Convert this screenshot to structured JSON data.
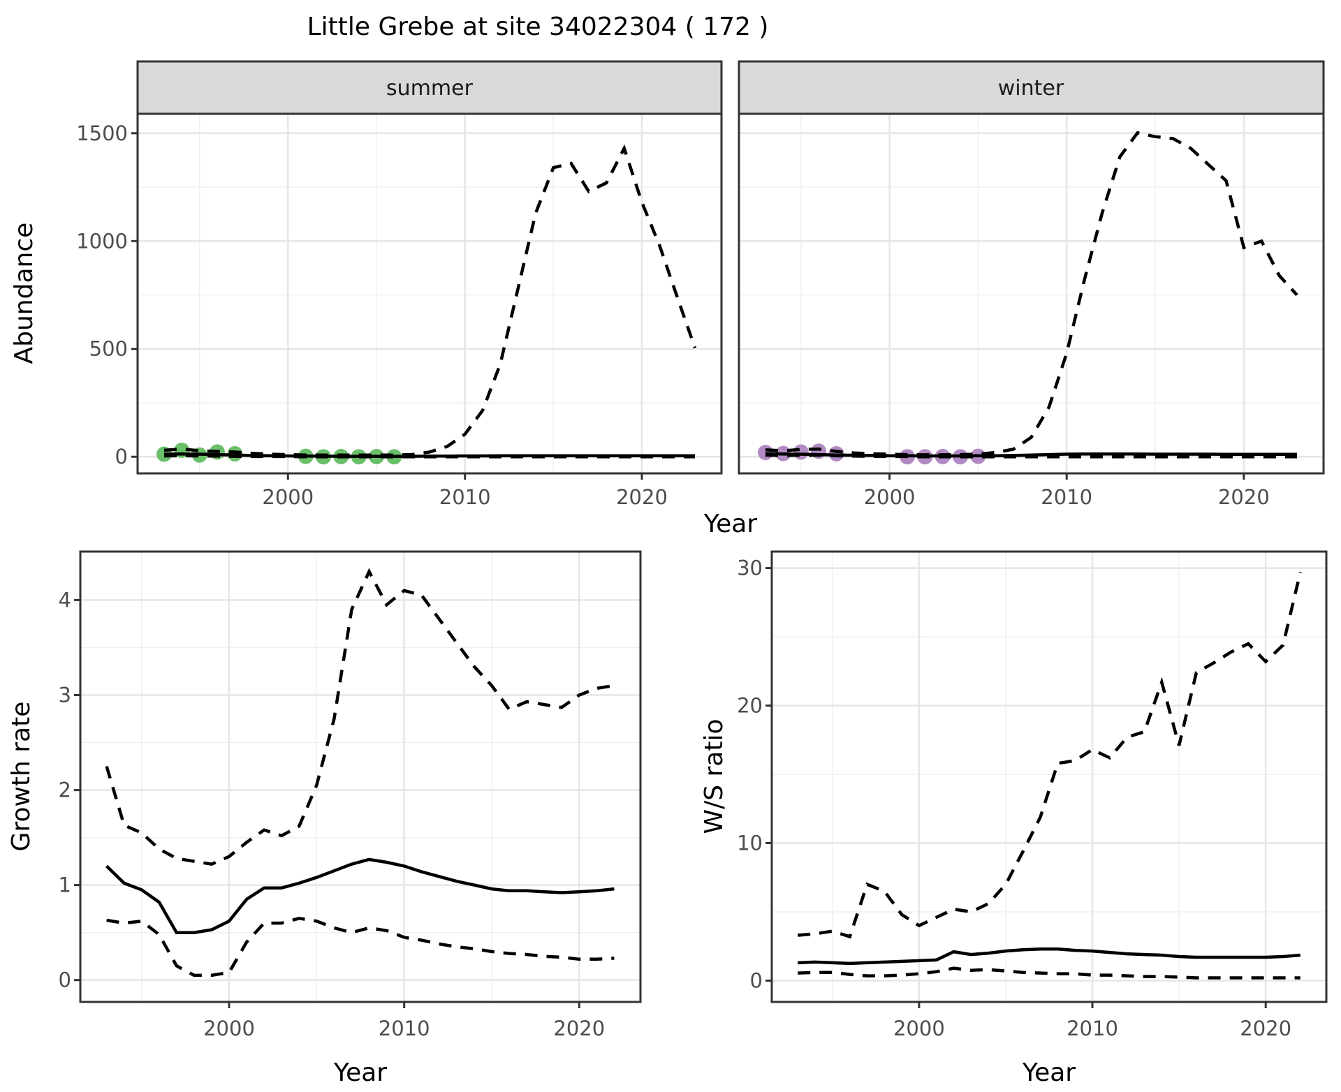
{
  "title": "Little Grebe at site 34022304 ( 172 )",
  "facets": [
    {
      "label": "summer"
    },
    {
      "label": "winter"
    }
  ],
  "axes": {
    "shared_x_label": "Year",
    "abundance_label": "Abundance",
    "growth_label": "Growth rate",
    "ws_label": "W/S ratio",
    "bottom_left_x_label": "Year",
    "bottom_right_x_label": "Year"
  },
  "colors": {
    "summer_points": "#6ABF69",
    "winter_points": "#B28BC4",
    "line": "#000000",
    "strip_fill": "#D9D9D9",
    "panel_border": "#333333",
    "grid_major": "#E6E6E6",
    "grid_minor": "#F0F0F0",
    "tick_label": "#4D4D4D",
    "background": "#FFFFFF"
  },
  "chart_data": [
    {
      "id": "abundance_summer",
      "type": "line",
      "facet": "summer",
      "xlabel": "Year",
      "ylabel": "Abundance",
      "xlim": [
        1991.5,
        2024.5
      ],
      "ylim": [
        -77,
        1590
      ],
      "xticks": [
        2000,
        2010,
        2020
      ],
      "yticks": [
        0,
        500,
        1000,
        1500
      ],
      "xminor": [
        1995,
        2005,
        2015
      ],
      "yminor": [
        250,
        750,
        1250
      ],
      "grid": true,
      "legend": "none",
      "x": [
        1993,
        1994,
        1995,
        1996,
        1997,
        1998,
        1999,
        2000,
        2001,
        2002,
        2003,
        2004,
        2005,
        2006,
        2007,
        2008,
        2009,
        2010,
        2011,
        2012,
        2013,
        2014,
        2015,
        2016,
        2017,
        2018,
        2019,
        2020,
        2021,
        2022,
        2023
      ],
      "series": [
        {
          "name": "median_fit",
          "style": "solid",
          "values": [
            12,
            13,
            12,
            10,
            8,
            6,
            5,
            4,
            3,
            3,
            2,
            2,
            2,
            2,
            2,
            3,
            3,
            4,
            4,
            5,
            5,
            5,
            5,
            5,
            5,
            5,
            5,
            5,
            5,
            5,
            5
          ]
        },
        {
          "name": "upper_ci",
          "style": "dashed",
          "values": [
            30,
            36,
            28,
            25,
            22,
            16,
            12,
            10,
            8,
            8,
            8,
            8,
            8,
            8,
            10,
            22,
            48,
            105,
            215,
            430,
            780,
            1130,
            1340,
            1360,
            1230,
            1270,
            1430,
            1180,
            980,
            740,
            505
          ]
        },
        {
          "name": "lower_ci",
          "style": "dashed",
          "values": [
            4,
            5,
            4,
            3,
            2,
            1,
            1,
            1,
            0,
            0,
            0,
            0,
            0,
            0,
            0,
            0,
            0,
            0,
            0,
            0,
            0,
            0,
            0,
            0,
            0,
            0,
            0,
            0,
            0,
            0,
            0
          ]
        },
        {
          "name": "observed_counts",
          "style": "points",
          "color": "#6ABF69",
          "x": [
            1993,
            1994,
            1995,
            1996,
            1997,
            2001,
            2002,
            2003,
            2004,
            2005,
            2006
          ],
          "values": [
            12,
            30,
            8,
            22,
            14,
            2,
            0,
            1,
            0,
            1,
            0
          ]
        }
      ]
    },
    {
      "id": "abundance_winter",
      "type": "line",
      "facet": "winter",
      "xlabel": "Year",
      "ylabel": "Abundance",
      "xlim": [
        1991.5,
        2024.5
      ],
      "ylim": [
        -77,
        1590
      ],
      "xticks": [
        2000,
        2010,
        2020
      ],
      "yticks": [
        0,
        500,
        1000,
        1500
      ],
      "xminor": [
        1995,
        2005,
        2015
      ],
      "yminor": [
        250,
        750,
        1250
      ],
      "grid": true,
      "legend": "none",
      "x": [
        1993,
        1994,
        1995,
        1996,
        1997,
        1998,
        1999,
        2000,
        2001,
        2002,
        2003,
        2004,
        2005,
        2006,
        2007,
        2008,
        2009,
        2010,
        2011,
        2012,
        2013,
        2014,
        2015,
        2016,
        2017,
        2018,
        2019,
        2020,
        2021,
        2022,
        2023
      ],
      "series": [
        {
          "name": "median_fit",
          "style": "solid",
          "values": [
            15,
            13,
            12,
            10,
            8,
            7,
            6,
            5,
            5,
            4,
            4,
            4,
            5,
            5,
            6,
            8,
            10,
            12,
            13,
            13,
            13,
            13,
            12,
            12,
            12,
            12,
            11,
            11,
            11,
            11,
            11
          ]
        },
        {
          "name": "upper_ci",
          "style": "dashed",
          "values": [
            32,
            28,
            34,
            36,
            25,
            18,
            14,
            12,
            10,
            9,
            9,
            10,
            12,
            20,
            35,
            90,
            230,
            480,
            820,
            1130,
            1390,
            1502,
            1484,
            1475,
            1430,
            1355,
            1280,
            970,
            1000,
            840,
            750
          ]
        },
        {
          "name": "lower_ci",
          "style": "dashed",
          "values": [
            8,
            6,
            7,
            8,
            5,
            3,
            2,
            1,
            1,
            0,
            0,
            0,
            0,
            0,
            0,
            0,
            0,
            0,
            0,
            0,
            0,
            0,
            0,
            0,
            0,
            0,
            0,
            0,
            0,
            0,
            0
          ]
        },
        {
          "name": "observed_counts",
          "style": "points",
          "color": "#B28BC4",
          "x": [
            1993,
            1994,
            1995,
            1996,
            1997,
            2001,
            2002,
            2003,
            2004,
            2005
          ],
          "values": [
            20,
            15,
            22,
            26,
            14,
            0,
            0,
            1,
            0,
            2
          ]
        }
      ]
    },
    {
      "id": "growth_rate",
      "type": "line",
      "xlabel": "Year",
      "ylabel": "Growth rate",
      "xlim": [
        1991.5,
        2023.5
      ],
      "ylim": [
        -0.23,
        4.51
      ],
      "xticks": [
        2000,
        2010,
        2020
      ],
      "yticks": [
        0,
        1,
        2,
        3,
        4
      ],
      "xminor": [
        1995,
        2005,
        2015
      ],
      "yminor": [
        0.5,
        1.5,
        2.5,
        3.5
      ],
      "grid": true,
      "legend": "none",
      "x": [
        1993,
        1994,
        1995,
        1996,
        1997,
        1998,
        1999,
        2000,
        2001,
        2002,
        2003,
        2004,
        2005,
        2006,
        2007,
        2008,
        2009,
        2010,
        2011,
        2012,
        2013,
        2014,
        2015,
        2016,
        2017,
        2018,
        2019,
        2020,
        2021,
        2022
      ],
      "series": [
        {
          "name": "median_fit",
          "style": "solid",
          "values": [
            1.2,
            1.02,
            0.95,
            0.82,
            0.5,
            0.5,
            0.53,
            0.62,
            0.85,
            0.97,
            0.97,
            1.02,
            1.08,
            1.15,
            1.22,
            1.27,
            1.24,
            1.2,
            1.14,
            1.09,
            1.04,
            1.0,
            0.96,
            0.94,
            0.94,
            0.93,
            0.92,
            0.93,
            0.94,
            0.96
          ]
        },
        {
          "name": "upper_ci",
          "style": "dashed",
          "values": [
            2.25,
            1.63,
            1.55,
            1.38,
            1.28,
            1.25,
            1.22,
            1.3,
            1.45,
            1.58,
            1.52,
            1.62,
            2.05,
            2.75,
            3.9,
            4.3,
            3.95,
            4.1,
            4.05,
            3.8,
            3.55,
            3.3,
            3.1,
            2.85,
            2.93,
            2.9,
            2.87,
            3.0,
            3.07,
            3.1
          ]
        },
        {
          "name": "lower_ci",
          "style": "dashed",
          "values": [
            0.63,
            0.6,
            0.62,
            0.48,
            0.15,
            0.05,
            0.05,
            0.08,
            0.4,
            0.6,
            0.6,
            0.65,
            0.62,
            0.55,
            0.5,
            0.55,
            0.52,
            0.45,
            0.42,
            0.38,
            0.35,
            0.33,
            0.3,
            0.28,
            0.27,
            0.25,
            0.24,
            0.22,
            0.22,
            0.23
          ]
        }
      ]
    },
    {
      "id": "ws_ratio",
      "type": "line",
      "xlabel": "Year",
      "ylabel": "W/S ratio",
      "xlim": [
        1991.5,
        2023.5
      ],
      "ylim": [
        -1.55,
        31.2
      ],
      "xticks": [
        2000,
        2010,
        2020
      ],
      "yticks": [
        0,
        10,
        20,
        30
      ],
      "xminor": [
        1995,
        2005,
        2015
      ],
      "yminor": [
        5,
        15,
        25
      ],
      "grid": true,
      "legend": "none",
      "x": [
        1993,
        1994,
        1995,
        1996,
        1997,
        1998,
        1999,
        2000,
        2001,
        2002,
        2003,
        2004,
        2005,
        2006,
        2007,
        2008,
        2009,
        2010,
        2011,
        2012,
        2013,
        2014,
        2015,
        2016,
        2017,
        2018,
        2019,
        2020,
        2021,
        2022
      ],
      "series": [
        {
          "name": "median_fit",
          "style": "solid",
          "values": [
            1.3,
            1.35,
            1.3,
            1.25,
            1.3,
            1.35,
            1.4,
            1.45,
            1.5,
            2.1,
            1.9,
            2.0,
            2.15,
            2.25,
            2.3,
            2.3,
            2.2,
            2.15,
            2.05,
            1.95,
            1.9,
            1.85,
            1.75,
            1.7,
            1.7,
            1.7,
            1.7,
            1.7,
            1.75,
            1.85
          ]
        },
        {
          "name": "upper_ci",
          "style": "dashed",
          "values": [
            3.3,
            3.4,
            3.6,
            3.2,
            7.0,
            6.5,
            4.8,
            4.0,
            4.6,
            5.2,
            5.0,
            5.6,
            7.0,
            9.4,
            11.9,
            15.8,
            16.0,
            16.8,
            16.2,
            17.7,
            18.1,
            21.7,
            17.1,
            22.4,
            23.1,
            23.9,
            24.5,
            23.2,
            24.4,
            29.7
          ]
        },
        {
          "name": "lower_ci",
          "style": "dashed",
          "values": [
            0.55,
            0.6,
            0.6,
            0.45,
            0.35,
            0.35,
            0.4,
            0.5,
            0.65,
            0.9,
            0.75,
            0.8,
            0.7,
            0.6,
            0.55,
            0.5,
            0.5,
            0.4,
            0.4,
            0.35,
            0.3,
            0.3,
            0.25,
            0.2,
            0.2,
            0.2,
            0.2,
            0.2,
            0.2,
            0.2
          ]
        }
      ]
    }
  ]
}
